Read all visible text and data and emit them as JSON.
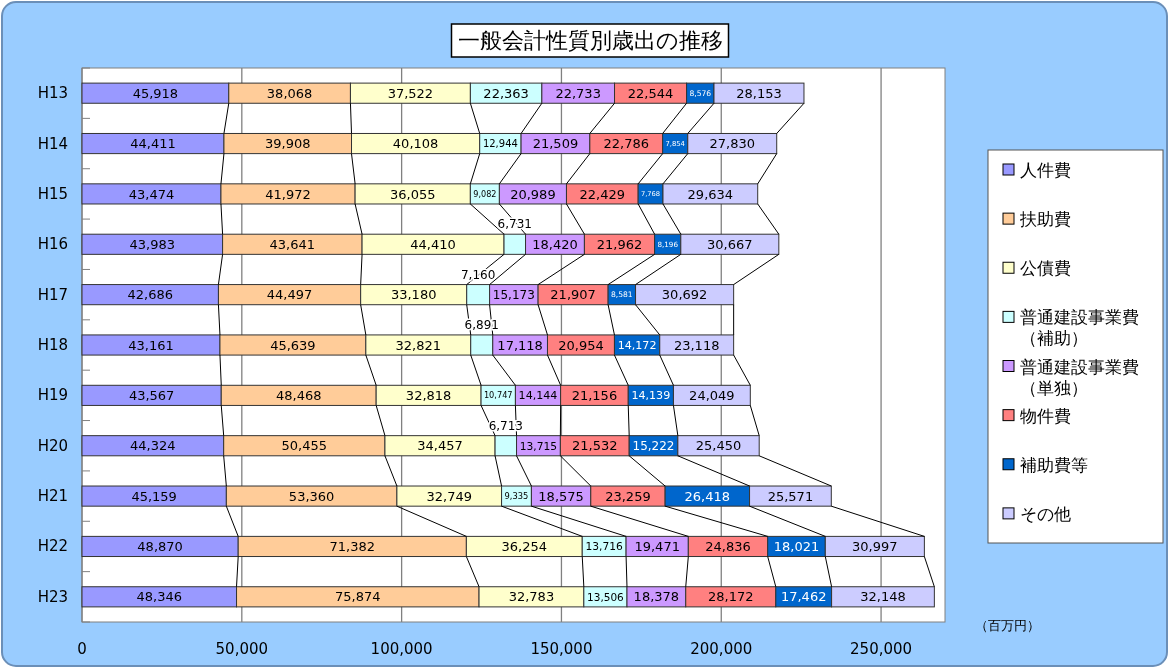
{
  "chart_data": {
    "type": "bar",
    "orientation": "horizontal",
    "stacked": true,
    "title": "一般会計性質別歳出の推移",
    "xlabel": "（百万円）",
    "categories": [
      "H13",
      "H14",
      "H15",
      "H16",
      "H17",
      "H18",
      "H19",
      "H20",
      "H21",
      "H22",
      "H23"
    ],
    "series": [
      {
        "name": "人件費",
        "color": "#9999ff",
        "values": [
          45918,
          44411,
          43474,
          43983,
          42686,
          43161,
          43567,
          44324,
          45159,
          48870,
          48346
        ],
        "value_labels": [
          "45,918",
          "44,411",
          "43,474",
          "43,983",
          "42,686",
          "43,161",
          "43,567",
          "44,324",
          "45,159",
          "48,870",
          "48,346"
        ]
      },
      {
        "name": "扶助費",
        "color": "#ffcc99",
        "values": [
          38068,
          39908,
          41972,
          43641,
          44497,
          45639,
          48468,
          50455,
          53360,
          71382,
          75874
        ],
        "value_labels": [
          "38,068",
          "39,908",
          "41,972",
          "43,641",
          "44,497",
          "45,639",
          "48,468",
          "50,455",
          "53,360",
          "71,382",
          "75,874"
        ]
      },
      {
        "name": "公債費",
        "color": "#ffffcc",
        "values": [
          37522,
          40108,
          36055,
          44410,
          33180,
          32821,
          32818,
          34457,
          32749,
          36254,
          32783
        ],
        "value_labels": [
          "37,522",
          "40,108",
          "36,055",
          "44,410",
          "33,180",
          "32,821",
          "32,818",
          "34,457",
          "32,749",
          "36,254",
          "32,783"
        ]
      },
      {
        "name": "普通建設事業費（補助）",
        "color": "#ccffff",
        "values": [
          22363,
          12944,
          9082,
          6731,
          7160,
          6891,
          10747,
          6713,
          9335,
          13716,
          13506
        ],
        "value_labels": [
          "22,363",
          "12,944",
          "9,082",
          "6,731",
          "7,160",
          "6,891",
          "10,747",
          "6,713",
          "9,335",
          "13,716",
          "13,506"
        ]
      },
      {
        "name": "普通建設事業費（単独）",
        "color": "#cc99ff",
        "values": [
          22733,
          21509,
          20989,
          18420,
          15173,
          17118,
          14144,
          13715,
          18575,
          19471,
          18378
        ],
        "value_labels": [
          "22,733",
          "21,509",
          "20,989",
          "18,420",
          "15,173",
          "17,118",
          "14,144",
          "13,715",
          "18,575",
          "19,471",
          "18,378"
        ]
      },
      {
        "name": "物件費",
        "color": "#ff8080",
        "values": [
          22544,
          22786,
          22429,
          21962,
          21907,
          20954,
          21156,
          21532,
          23259,
          24836,
          28172
        ],
        "value_labels": [
          "22,544",
          "22,786",
          "22,429",
          "21,962",
          "21,907",
          "20,954",
          "21,156",
          "21,532",
          "23,259",
          "24,836",
          "28,172"
        ]
      },
      {
        "name": "補助費等",
        "color": "#0066cc",
        "values": [
          8576,
          7854,
          7768,
          8196,
          8581,
          14172,
          14139,
          15222,
          26418,
          18021,
          17462
        ],
        "value_labels": [
          "8,576",
          "7,854",
          "7,768",
          "8,196",
          "8,581",
          "14,172",
          "14,139",
          "15,222",
          "26,418",
          "18,021",
          "17,462"
        ]
      },
      {
        "name": "その他",
        "color": "#ccccff",
        "values": [
          28153,
          27830,
          29634,
          30667,
          30692,
          23118,
          24049,
          25450,
          25571,
          30997,
          32148
        ],
        "value_labels": [
          "28,153",
          "27,830",
          "29,634",
          "30,667",
          "30,692",
          "23,118",
          "24,049",
          "25,450",
          "25,571",
          "30,997",
          "32,148"
        ]
      }
    ],
    "xlim": [
      0,
      270000
    ],
    "xticks": [
      {
        "value": 0,
        "label": "0"
      },
      {
        "value": 50000,
        "label": "50,000"
      },
      {
        "value": 100000,
        "label": "100,000"
      },
      {
        "value": 150000,
        "label": "150,000"
      },
      {
        "value": 200000,
        "label": "200,000"
      },
      {
        "value": 250000,
        "label": "250,000"
      }
    ],
    "grid": "x",
    "legend": "right"
  }
}
